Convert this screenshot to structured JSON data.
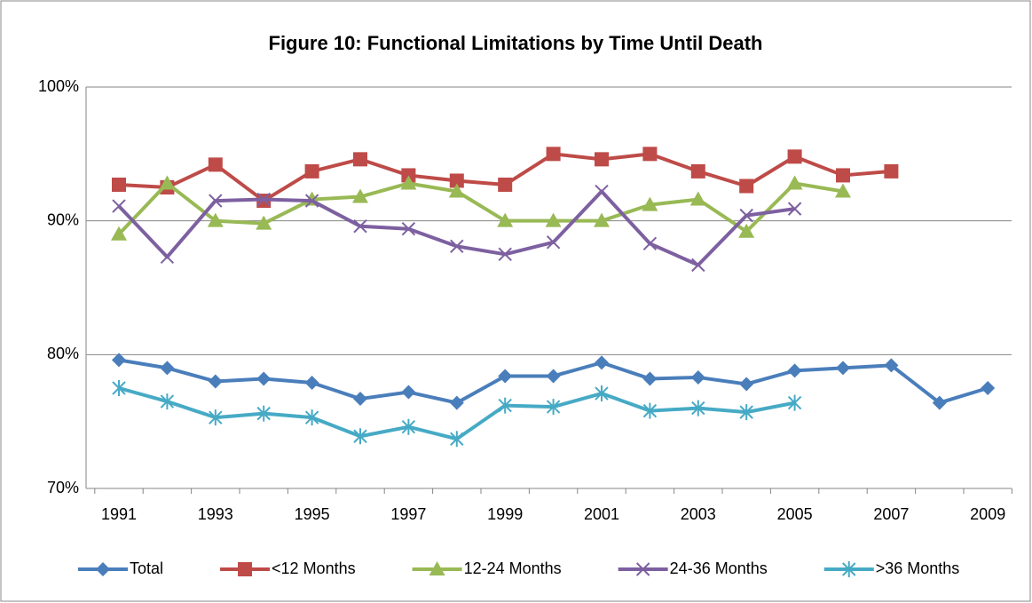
{
  "chart_data": {
    "type": "line",
    "title": "Figure 10: Functional Limitations by Time Until Death",
    "categories": [
      "1991",
      null,
      "1993",
      null,
      "1995",
      null,
      "1997",
      null,
      "1999",
      null,
      "2001",
      null,
      "2003",
      null,
      "2005",
      null,
      "2007",
      null,
      "2009"
    ],
    "series": [
      {
        "name": "Total",
        "color": "#4a7ebb",
        "marker": "diamond",
        "values": [
          79.6,
          79.0,
          78.0,
          78.2,
          77.9,
          76.7,
          77.2,
          76.4,
          78.4,
          78.4,
          79.4,
          78.2,
          78.3,
          77.8,
          78.8,
          79.0,
          79.2,
          76.4,
          77.5
        ]
      },
      {
        "name": "<12 Months",
        "color": "#be4b48",
        "marker": "square",
        "values": [
          92.7,
          92.5,
          94.2,
          91.5,
          93.7,
          94.6,
          93.4,
          93.0,
          92.7,
          95.0,
          94.6,
          95.0,
          93.7,
          92.6,
          94.8,
          93.4,
          93.7,
          null,
          null
        ]
      },
      {
        "name": "12-24 Months",
        "color": "#98b954",
        "marker": "triangle",
        "values": [
          89.0,
          92.8,
          90.0,
          89.8,
          91.6,
          91.8,
          92.8,
          92.2,
          90.0,
          90.0,
          90.0,
          91.2,
          91.6,
          89.2,
          92.8,
          92.2,
          null,
          null,
          null
        ]
      },
      {
        "name": "24-36 Months",
        "color": "#7d60a0",
        "marker": "cross",
        "values": [
          91.1,
          87.3,
          91.5,
          91.6,
          91.5,
          89.6,
          89.4,
          88.1,
          87.5,
          88.4,
          92.2,
          88.3,
          86.7,
          90.4,
          90.9,
          null,
          null,
          null,
          null
        ]
      },
      {
        "name": ">36 Months",
        "color": "#46aac5",
        "marker": "star",
        "values": [
          77.5,
          76.5,
          75.3,
          75.6,
          75.3,
          73.9,
          74.6,
          73.7,
          76.2,
          76.1,
          77.1,
          75.8,
          76.0,
          75.7,
          76.4,
          null,
          null,
          null,
          null
        ]
      }
    ],
    "ylim": [
      70,
      100
    ],
    "yticks": [
      {
        "value": 70,
        "label": "70%"
      },
      {
        "value": 80,
        "label": "80%"
      },
      {
        "value": 90,
        "label": "90%"
      },
      {
        "value": 100,
        "label": "100%"
      }
    ],
    "grid": true,
    "legend": "bottom"
  }
}
